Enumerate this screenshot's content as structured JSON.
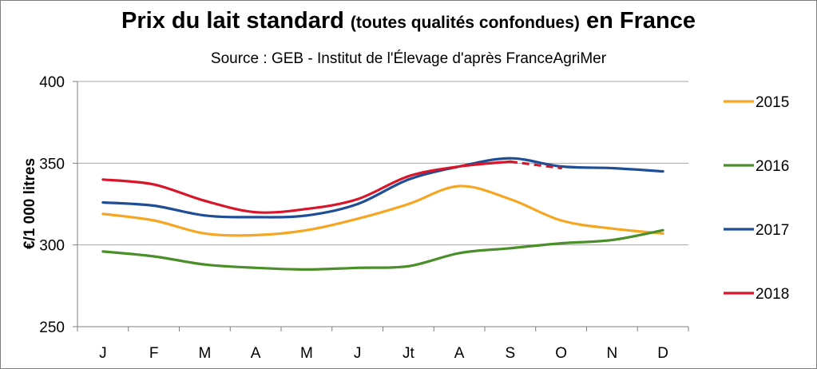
{
  "chart_data": {
    "type": "line",
    "title": "Prix du lait standard",
    "title_suffix": "(toutes qualités confondues)",
    "title_end": "en France",
    "subtitle": "Source : GEB - Institut de l'Élevage d'après FranceAgriMer",
    "ylabel": "€/1 000 litres",
    "xlabel": "",
    "ylim": [
      250,
      400
    ],
    "yticks": [
      250,
      300,
      350,
      400
    ],
    "grid": true,
    "legend_position": "right",
    "categories": [
      "J",
      "F",
      "M",
      "A",
      "M",
      "J",
      "Jt",
      "A",
      "S",
      "O",
      "N",
      "D"
    ],
    "series": [
      {
        "name": "2015",
        "color": "#f5a623",
        "values": [
          319,
          315,
          307,
          306,
          309,
          316,
          325,
          336,
          328,
          315,
          310,
          307
        ]
      },
      {
        "name": "2016",
        "color": "#4a8f2a",
        "values": [
          296,
          293,
          288,
          286,
          285,
          286,
          287,
          295,
          298,
          301,
          303,
          309
        ]
      },
      {
        "name": "2017",
        "color": "#1f4e96",
        "values": [
          326,
          324,
          318,
          317,
          318,
          325,
          340,
          348,
          353,
          348,
          347,
          345
        ]
      },
      {
        "name": "2018",
        "color": "#d9152a",
        "values": [
          340,
          337,
          327,
          320,
          322,
          328,
          342,
          348,
          351,
          347,
          null,
          null
        ],
        "dashed_from_index": 8
      }
    ]
  }
}
